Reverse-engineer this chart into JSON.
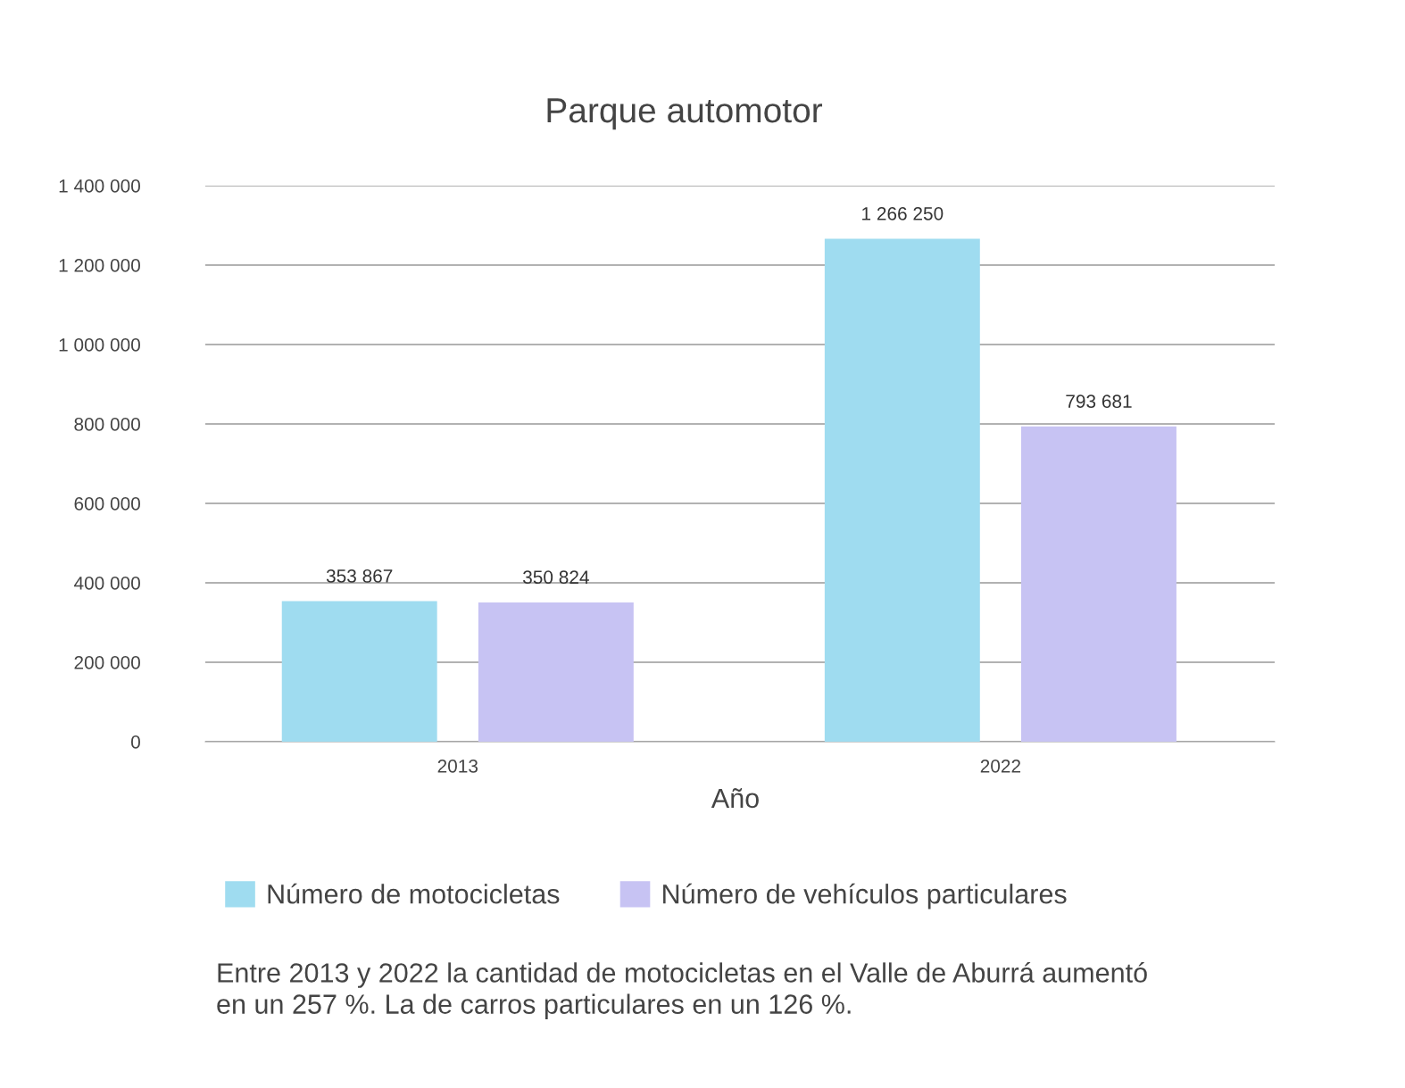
{
  "chart_data": {
    "type": "bar",
    "title": "Parque automotor",
    "xlabel": "Año",
    "categories": [
      "2013",
      "2022"
    ],
    "series": [
      {
        "name": "Número de motocicletas",
        "color": "#9fdcf0",
        "values": [
          353867,
          1266250
        ],
        "value_labels": [
          "353 867",
          "1 266 250"
        ]
      },
      {
        "name": "Número de vehículos particulares",
        "color": "#c7c3f3",
        "values": [
          350824,
          793681
        ],
        "value_labels": [
          "350 824",
          "793 681"
        ]
      }
    ],
    "ylim": [
      0,
      1400000
    ],
    "yticks": [
      0,
      {
        "value": 200000,
        "label": "200 000"
      },
      {
        "value": 400000,
        "label": "400 000"
      },
      {
        "value": 600000,
        "label": "600 000"
      },
      {
        "value": 800000,
        "label": "800 000"
      },
      {
        "value": 1000000,
        "label": "1 000 000"
      },
      {
        "value": 1200000,
        "label": "1 200 000"
      },
      {
        "value": 1400000,
        "label": "1 400 000"
      }
    ],
    "grid": "y",
    "legend": "bottom",
    "annotations": [
      "Entre 2013 y 2022 la cantidad de motocicletas en el Valle de Aburrá aumentó\nen un 257 %. La de carros particulares en un 126 %."
    ]
  }
}
